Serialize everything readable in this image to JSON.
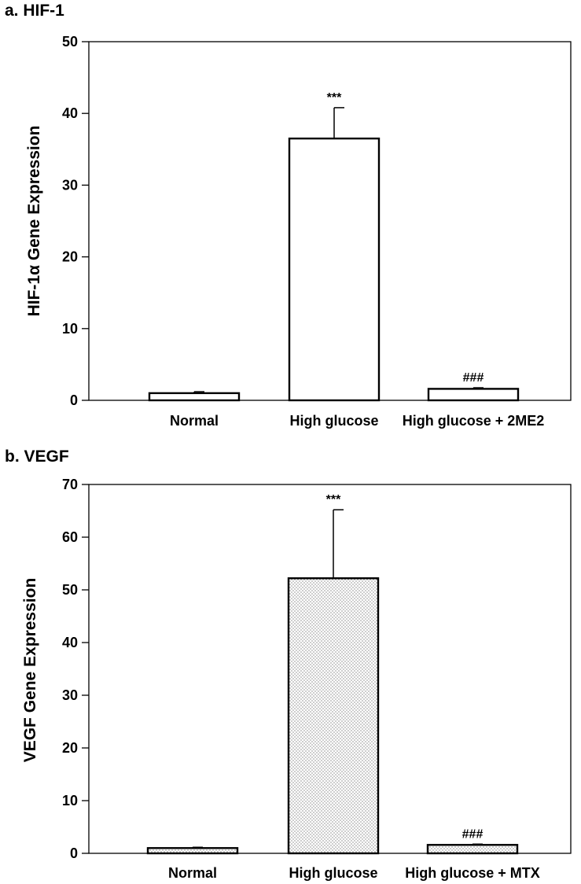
{
  "chart_data": [
    {
      "panel_label": "a. HIF-1",
      "type": "bar",
      "categories": [
        "Normal",
        "High glucose",
        "High glucose + 2ME2"
      ],
      "values": [
        1.0,
        36.5,
        1.6
      ],
      "errors": [
        0.2,
        4.3,
        0.15
      ],
      "significance": [
        "",
        "***",
        "###"
      ],
      "ylabel": "HIF-1α Gene Expression",
      "ylim": [
        0,
        50
      ],
      "yticks": [
        "0",
        "10",
        "20",
        "30",
        "40",
        "50"
      ],
      "fill": "none",
      "grid": false
    },
    {
      "panel_label": "b. VEGF",
      "type": "bar",
      "categories": [
        "Normal",
        "High glucose",
        "High glucose + MTX"
      ],
      "values": [
        1.0,
        52.2,
        1.6
      ],
      "errors": [
        0.15,
        13.0,
        0.15
      ],
      "significance": [
        "",
        "***",
        "###"
      ],
      "ylabel": "VEGF Gene Expression",
      "ylim": [
        0,
        70
      ],
      "yticks": [
        "0",
        "10",
        "20",
        "30",
        "40",
        "50",
        "60",
        "70"
      ],
      "fill": "dotted",
      "grid": false
    }
  ]
}
